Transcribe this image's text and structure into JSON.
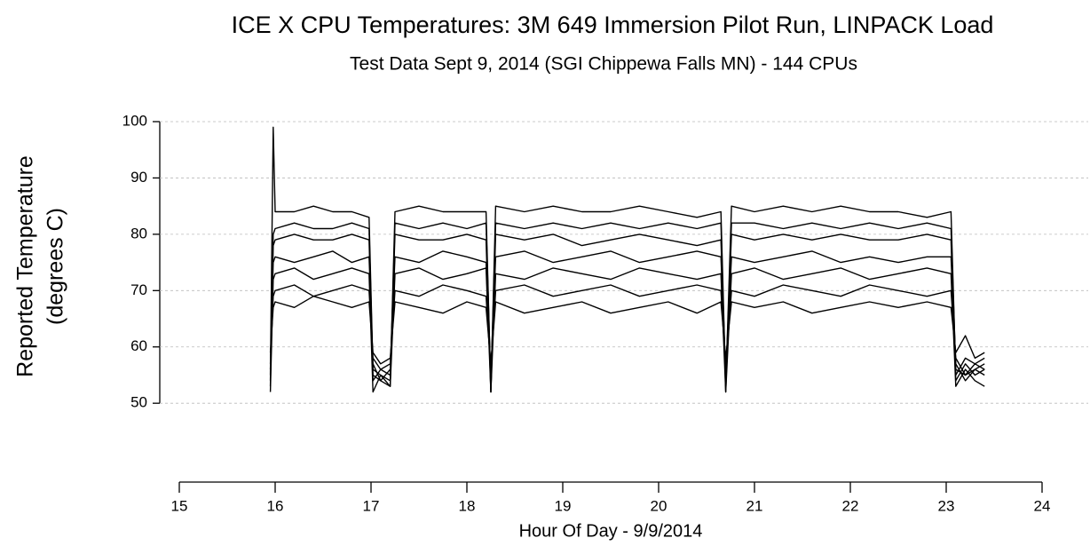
{
  "chart_data": {
    "type": "line",
    "title": "ICE X CPU Temperatures: 3M 649 Immersion Pilot Run, LINPACK Load",
    "subtitle": "Test Data Sept 9, 2014 (SGI Chippewa Falls MN)   -  144 CPUs",
    "xlabel": "Hour Of Day - 9/9/2014",
    "ylabel": [
      "Reported Temperature",
      "(degrees C)"
    ],
    "xlim": [
      15,
      24
    ],
    "xticks": [
      15,
      16,
      17,
      18,
      19,
      20,
      21,
      22,
      23,
      24
    ],
    "ylim": [
      36,
      100
    ],
    "yticks": [
      50,
      60,
      70,
      80,
      90,
      100
    ],
    "grid": true,
    "x": [
      15.95,
      15.98,
      16.0,
      16.2,
      16.4,
      16.6,
      16.8,
      16.98,
      17.02,
      17.1,
      17.2,
      17.25,
      17.5,
      17.75,
      18.0,
      18.2,
      18.25,
      18.3,
      18.6,
      18.9,
      19.2,
      19.5,
      19.8,
      20.1,
      20.4,
      20.65,
      20.7,
      20.76,
      21.0,
      21.3,
      21.6,
      21.9,
      22.2,
      22.5,
      22.8,
      23.05,
      23.1,
      23.2,
      23.3,
      23.4
    ],
    "series": [
      {
        "color": "#000000",
        "values": [
          55,
          99,
          84,
          84,
          85,
          84,
          84,
          83,
          56,
          55,
          54,
          84,
          85,
          84,
          84,
          84,
          52,
          85,
          84,
          85,
          84,
          84,
          85,
          84,
          83,
          84,
          53,
          85,
          84,
          85,
          84,
          85,
          84,
          84,
          83,
          84,
          55,
          58,
          57,
          58
        ]
      },
      {
        "color": "#000000",
        "values": [
          54,
          80,
          81,
          82,
          81,
          81,
          82,
          81,
          55,
          54,
          53,
          82,
          81,
          82,
          81,
          82,
          53,
          82,
          81,
          82,
          81,
          82,
          81,
          82,
          81,
          82,
          52,
          82,
          82,
          81,
          82,
          81,
          82,
          81,
          82,
          81,
          56,
          55,
          56,
          55
        ]
      },
      {
        "color": "#000000",
        "values": [
          53,
          78,
          79,
          80,
          79,
          79,
          80,
          79,
          54,
          56,
          55,
          80,
          79,
          79,
          80,
          79,
          52,
          80,
          79,
          80,
          78,
          79,
          80,
          79,
          78,
          79,
          54,
          80,
          79,
          80,
          79,
          80,
          79,
          79,
          80,
          79,
          54,
          57,
          55,
          56
        ]
      },
      {
        "color": "#000000",
        "values": [
          56,
          75,
          76,
          75,
          76,
          77,
          75,
          76,
          57,
          54,
          56,
          76,
          75,
          77,
          76,
          75,
          55,
          76,
          77,
          75,
          76,
          77,
          75,
          76,
          77,
          76,
          55,
          76,
          75,
          76,
          77,
          75,
          76,
          75,
          76,
          76,
          57,
          54,
          56,
          57
        ]
      },
      {
        "color": "#000000",
        "values": [
          52,
          72,
          73,
          74,
          72,
          73,
          74,
          73,
          52,
          55,
          53,
          73,
          74,
          72,
          73,
          74,
          52,
          73,
          72,
          74,
          73,
          72,
          74,
          73,
          72,
          73,
          52,
          73,
          74,
          72,
          73,
          74,
          72,
          73,
          74,
          73,
          53,
          56,
          54,
          53
        ]
      },
      {
        "color": "#000000",
        "values": [
          57,
          69,
          70,
          71,
          69,
          70,
          71,
          70,
          58,
          56,
          57,
          70,
          69,
          71,
          70,
          69,
          56,
          70,
          71,
          69,
          70,
          71,
          69,
          70,
          71,
          70,
          56,
          70,
          69,
          71,
          70,
          69,
          71,
          70,
          69,
          70,
          58,
          55,
          57,
          56
        ]
      },
      {
        "color": "#000000",
        "values": [
          59,
          67,
          68,
          67,
          69,
          68,
          67,
          68,
          59,
          57,
          58,
          68,
          67,
          66,
          68,
          67,
          57,
          68,
          66,
          67,
          68,
          66,
          67,
          68,
          66,
          68,
          58,
          68,
          67,
          68,
          66,
          67,
          68,
          67,
          68,
          67,
          59,
          62,
          58,
          59
        ]
      }
    ]
  }
}
